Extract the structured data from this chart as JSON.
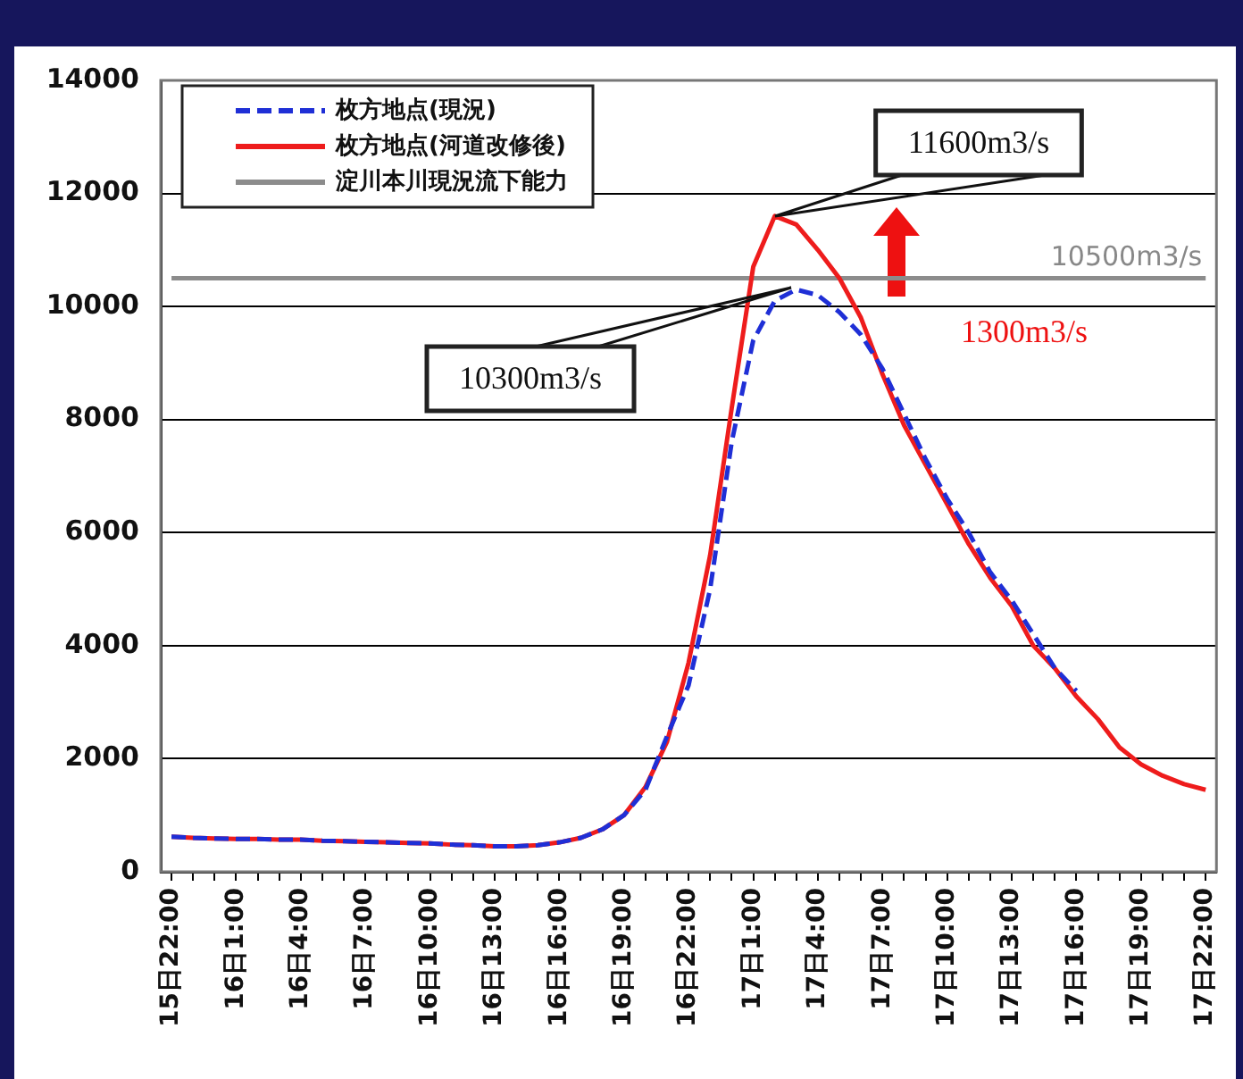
{
  "chart_data": {
    "type": "line",
    "categories": [
      "15日22:00",
      null,
      null,
      "16日1:00",
      null,
      null,
      "16日4:00",
      null,
      null,
      "16日7:00",
      null,
      null,
      "16日10:00",
      null,
      null,
      "16日13:00",
      null,
      null,
      "16日16:00",
      null,
      null,
      "16日19:00",
      null,
      null,
      "16日22:00",
      null,
      null,
      "17日1:00",
      null,
      null,
      "17日4:00",
      null,
      null,
      "17日7:00",
      null,
      null,
      "17日10:00",
      null,
      null,
      "17日13:00",
      null,
      null,
      "17日16:00",
      null,
      null,
      "17日19:00",
      null,
      null,
      "17日22:00"
    ],
    "series": [
      {
        "name": "枚方地点(現況)",
        "color": "#1f2fd6",
        "line_style": "dashed",
        "values": [
          620,
          600,
          590,
          580,
          580,
          570,
          570,
          550,
          540,
          530,
          520,
          510,
          500,
          480,
          470,
          450,
          450,
          470,
          520,
          600,
          750,
          1000,
          1450,
          2400,
          3300,
          5000,
          7600,
          9400,
          10100,
          10300,
          10200,
          9900,
          9500,
          8900,
          8100,
          7300,
          6600,
          6000,
          5300,
          4800,
          4200,
          3600,
          3200,
          null,
          null,
          null,
          null,
          null,
          null
        ]
      },
      {
        "name": "枚方地点(河道改修後)",
        "color": "#ee1c1c",
        "line_style": "solid",
        "values": [
          620,
          600,
          590,
          580,
          580,
          570,
          570,
          550,
          540,
          530,
          520,
          510,
          500,
          480,
          470,
          450,
          450,
          470,
          520,
          600,
          750,
          1000,
          1500,
          2300,
          3700,
          5600,
          8200,
          10700,
          11600,
          11450,
          11000,
          10500,
          9800,
          8800,
          7900,
          7200,
          6500,
          5800,
          5200,
          4700,
          4000,
          3600,
          3100,
          2700,
          2200,
          1900,
          1700,
          1550,
          1450
        ]
      },
      {
        "name": "淀川本川現況流下能力",
        "color": "#8c8c8c",
        "line_style": "solid",
        "values": [
          10500,
          10500,
          10500,
          10500,
          10500,
          10500,
          10500,
          10500,
          10500,
          10500,
          10500,
          10500,
          10500,
          10500,
          10500,
          10500,
          10500,
          10500,
          10500,
          10500,
          10500,
          10500,
          10500,
          10500,
          10500,
          10500,
          10500,
          10500,
          10500,
          10500,
          10500,
          10500,
          10500,
          10500,
          10500,
          10500,
          10500,
          10500,
          10500,
          10500,
          10500,
          10500,
          10500,
          10500,
          10500,
          10500,
          10500,
          10500,
          10500
        ]
      }
    ],
    "ylim": [
      0,
      14000
    ],
    "yticks": [
      0,
      2000,
      4000,
      6000,
      8000,
      10000,
      12000,
      14000
    ],
    "grid": "y",
    "legend": "top left",
    "marker": "none",
    "annotations": [
      "11600m3/s",
      "10300m3/s",
      {
        "text": "10500m3/s",
        "y": 10500
      },
      "1300m3/s"
    ]
  }
}
